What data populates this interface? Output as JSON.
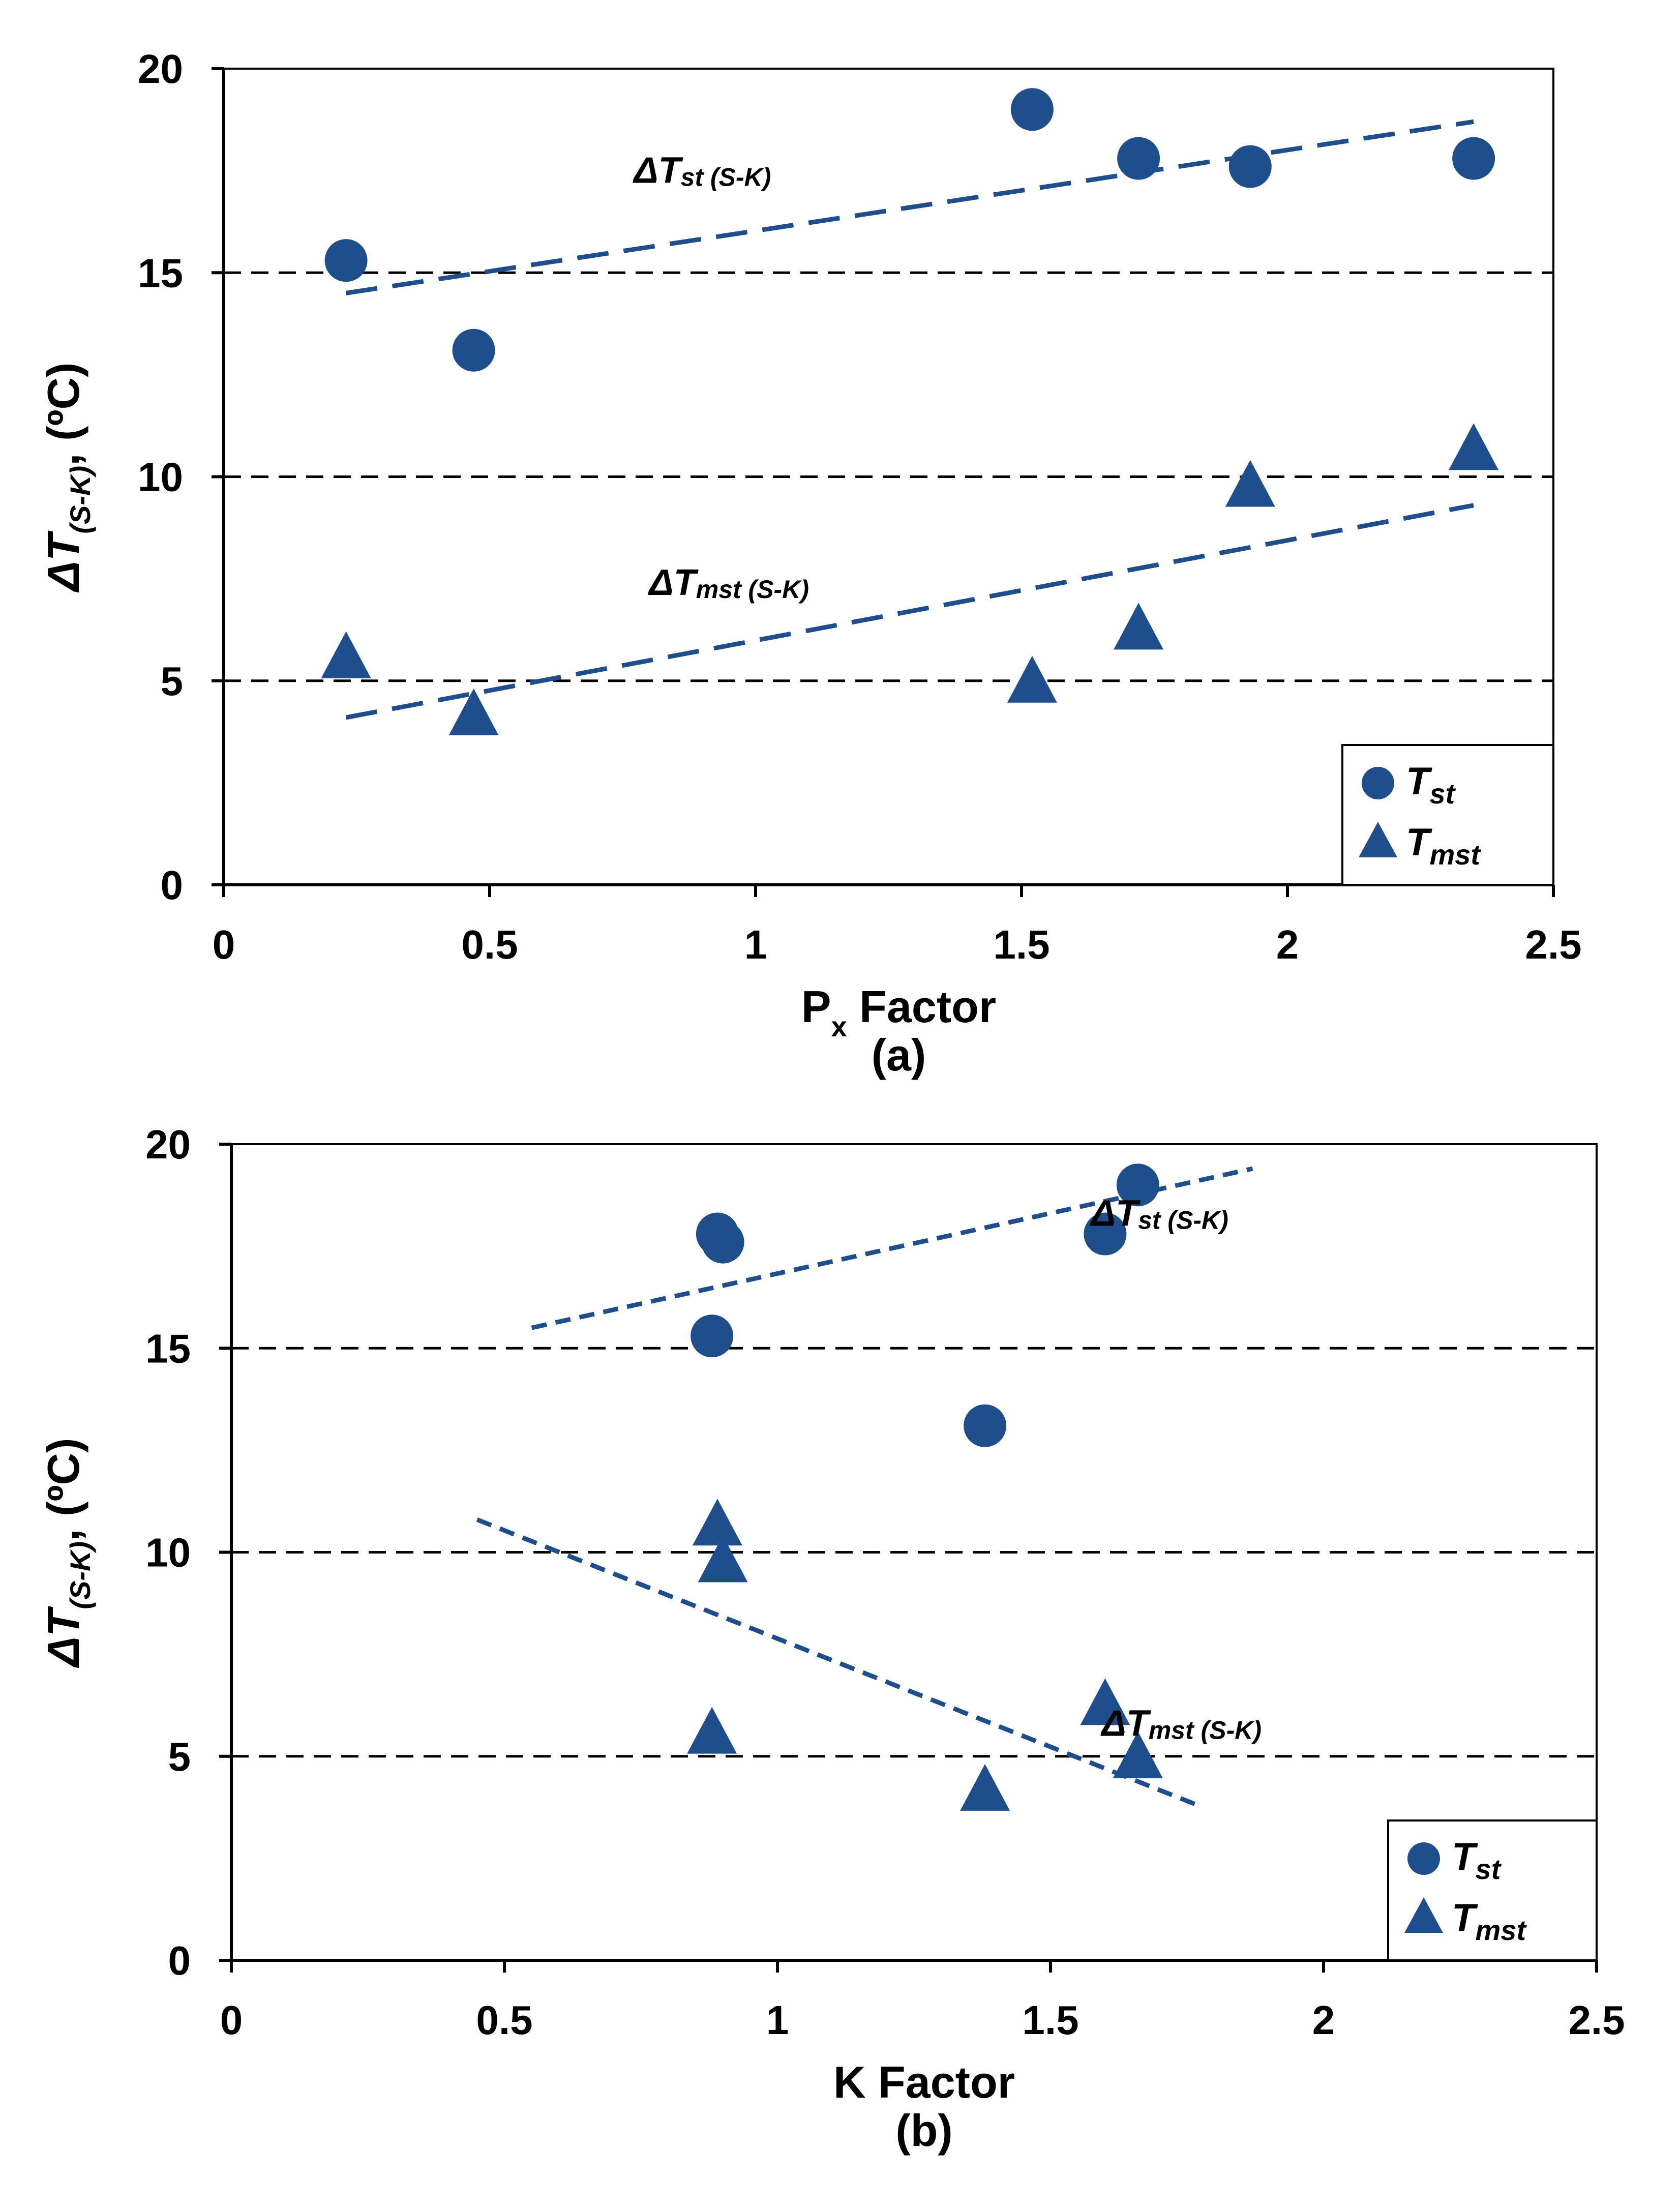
{
  "colors": {
    "marker": "#1f4e8c",
    "trend": "#1f4e8c",
    "grid": "#000000",
    "axis": "#000000"
  },
  "chart_data": [
    {
      "id": "a",
      "type": "scatter",
      "panel_label": "(a)",
      "xlabel_main": "P",
      "xlabel_sub": "x",
      "xlabel_rest": " Factor",
      "ylabel_main": "ΔT",
      "ylabel_sub": "(S-K)",
      "ylabel_rest": ", (ºC)",
      "xlim": [
        0,
        2.5
      ],
      "ylim": [
        0,
        20
      ],
      "xticks": [
        0,
        0.5,
        1,
        1.5,
        2,
        2.5
      ],
      "xtick_labels": [
        "0",
        "0.5",
        "1",
        "1.5",
        "2",
        "2.5"
      ],
      "yticks": [
        0,
        5,
        10,
        15,
        20
      ],
      "ytick_labels": [
        "0",
        "5",
        "10",
        "15",
        "20"
      ],
      "grid": "horizontal dashed",
      "legend_position": "bottom-right",
      "series": [
        {
          "name": "Tst",
          "name_main": "T",
          "name_sub": "st",
          "marker": "circle",
          "x": [
            0.23,
            0.47,
            1.52,
            1.72,
            1.93,
            2.35
          ],
          "y": [
            15.3,
            13.1,
            19.0,
            17.8,
            17.6,
            17.8
          ]
        },
        {
          "name": "Tmst",
          "name_main": "T",
          "name_sub": "mst",
          "marker": "triangle",
          "x": [
            0.23,
            0.47,
            1.52,
            1.72,
            1.93,
            2.35
          ],
          "y": [
            5.5,
            4.1,
            4.9,
            6.2,
            9.7,
            10.6
          ]
        }
      ],
      "trendlines": [
        {
          "series": "Tst",
          "style": "long-dash",
          "x": [
            0.23,
            2.35
          ],
          "y": [
            14.5,
            18.7
          ]
        },
        {
          "series": "Tmst",
          "style": "long-dash",
          "x": [
            0.23,
            2.35
          ],
          "y": [
            4.1,
            9.3
          ]
        }
      ],
      "annotations": [
        {
          "main": "ΔT",
          "sub": "st (S-K)",
          "x": 0.9,
          "y": 17.2
        },
        {
          "main": "ΔT",
          "sub": "mst (S-K)",
          "x": 0.95,
          "y": 7.1
        }
      ]
    },
    {
      "id": "b",
      "type": "scatter",
      "panel_label": "(b)",
      "xlabel_main": "K  Factor",
      "xlabel_sub": "",
      "xlabel_rest": "",
      "ylabel_main": "ΔT",
      "ylabel_sub": "(S-K)",
      "ylabel_rest": ", (ºC)",
      "xlim": [
        0,
        2.5
      ],
      "ylim": [
        0,
        20
      ],
      "xticks": [
        0,
        0.5,
        1,
        1.5,
        2,
        2.5
      ],
      "xtick_labels": [
        "0",
        "0.5",
        "1",
        "1.5",
        "2",
        "2.5"
      ],
      "yticks": [
        0,
        5,
        10,
        15,
        20
      ],
      "ytick_labels": [
        "0",
        "5",
        "10",
        "15",
        "20"
      ],
      "grid": "horizontal dashed",
      "legend_position": "bottom-right",
      "series": [
        {
          "name": "Tst",
          "name_main": "T",
          "name_sub": "st",
          "marker": "circle",
          "x": [
            0.88,
            0.89,
            0.9,
            1.38,
            1.6,
            1.66
          ],
          "y": [
            15.3,
            17.8,
            17.6,
            13.1,
            17.8,
            19.0
          ]
        },
        {
          "name": "Tmst",
          "name_main": "T",
          "name_sub": "mst",
          "marker": "triangle",
          "x": [
            0.88,
            0.89,
            0.9,
            1.38,
            1.6,
            1.66
          ],
          "y": [
            5.5,
            10.6,
            9.7,
            4.1,
            6.2,
            4.9
          ]
        }
      ],
      "trendlines": [
        {
          "series": "Tst",
          "style": "short-dash",
          "x": [
            0.55,
            1.87
          ],
          "y": [
            15.5,
            19.4
          ]
        },
        {
          "series": "Tmst",
          "style": "short-dash",
          "x": [
            0.45,
            1.77
          ],
          "y": [
            10.8,
            3.8
          ]
        }
      ],
      "annotations": [
        {
          "main": "ΔT",
          "sub": "st (S-K)",
          "x": 1.7,
          "y": 18.0
        },
        {
          "main": "ΔT",
          "sub": "mst (S-K)",
          "x": 1.74,
          "y": 5.5
        }
      ]
    }
  ]
}
